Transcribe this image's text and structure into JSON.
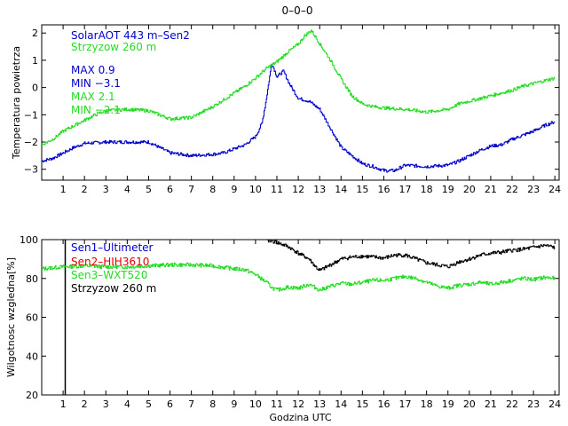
{
  "title": "0–0–0",
  "chart_data": [
    {
      "type": "line",
      "ylabel": "Temperatura powietrza",
      "xlim": [
        0,
        24.2
      ],
      "ylim": [
        -3.4,
        2.3
      ],
      "xticks": [
        1,
        2,
        3,
        4,
        5,
        6,
        7,
        8,
        9,
        10,
        11,
        12,
        13,
        14,
        15,
        16,
        17,
        18,
        19,
        20,
        21,
        22,
        23,
        24
      ],
      "xtick_labels": [
        "1",
        "2",
        "3",
        "4",
        "5",
        "6",
        "7",
        "8",
        "9",
        "10",
        "11",
        "12",
        "13",
        "14",
        "15",
        "16",
        "17",
        "18",
        "19",
        "20",
        "21",
        "22",
        "23",
        "24"
      ],
      "yticks": [
        -3,
        -2,
        -1,
        0,
        1,
        2
      ],
      "ytick_labels": [
        "−3",
        "−2",
        "−1",
        "0",
        "1",
        "2"
      ],
      "legend": [
        {
          "text": "SolarAOT 443 m–Sen2",
          "color": "#0000cc"
        },
        {
          "text": "Strzyzow 260 m",
          "color": "#22dd22"
        },
        {
          "text": "MAX 0.9",
          "color": "#0000cc"
        },
        {
          "text": "MIN −3.1",
          "color": "#0000cc"
        },
        {
          "text": "MAX 2.1",
          "color": "#22dd22"
        },
        {
          "text": "MIN −2.1",
          "color": "#22dd22"
        }
      ],
      "series": [
        {
          "name": "SolarAOT 443 m–Sen2",
          "color": "#0000cc",
          "points": [
            [
              0,
              -2.7
            ],
            [
              0.5,
              -2.6
            ],
            [
              1,
              -2.4
            ],
            [
              1.5,
              -2.2
            ],
            [
              2,
              -2.05
            ],
            [
              3,
              -2.0
            ],
            [
              4,
              -2.0
            ],
            [
              5,
              -2.0
            ],
            [
              5.5,
              -2.2
            ],
            [
              6,
              -2.4
            ],
            [
              7,
              -2.5
            ],
            [
              8,
              -2.45
            ],
            [
              8.5,
              -2.4
            ],
            [
              9,
              -2.25
            ],
            [
              9.5,
              -2.1
            ],
            [
              10,
              -1.8
            ],
            [
              10.3,
              -1.3
            ],
            [
              10.5,
              -0.4
            ],
            [
              10.75,
              0.9
            ],
            [
              11,
              0.4
            ],
            [
              11.3,
              0.6
            ],
            [
              11.6,
              0.1
            ],
            [
              12,
              -0.4
            ],
            [
              12.5,
              -0.5
            ],
            [
              13,
              -0.8
            ],
            [
              13.5,
              -1.5
            ],
            [
              14,
              -2.2
            ],
            [
              14.5,
              -2.5
            ],
            [
              15,
              -2.8
            ],
            [
              15.5,
              -2.9
            ],
            [
              16,
              -3.05
            ],
            [
              16.5,
              -3.05
            ],
            [
              17,
              -2.85
            ],
            [
              18,
              -2.9
            ],
            [
              19,
              -2.85
            ],
            [
              19.5,
              -2.7
            ],
            [
              20,
              -2.5
            ],
            [
              20.5,
              -2.3
            ],
            [
              21,
              -2.15
            ],
            [
              21.5,
              -2.1
            ],
            [
              22,
              -1.9
            ],
            [
              22.5,
              -1.75
            ],
            [
              23,
              -1.6
            ],
            [
              23.5,
              -1.4
            ],
            [
              24,
              -1.25
            ]
          ]
        },
        {
          "name": "Strzyzow 260 m",
          "color": "#22dd22",
          "points": [
            [
              0,
              -2.1
            ],
            [
              0.5,
              -1.9
            ],
            [
              1,
              -1.6
            ],
            [
              1.5,
              -1.4
            ],
            [
              2,
              -1.2
            ],
            [
              2.5,
              -1.0
            ],
            [
              3,
              -0.85
            ],
            [
              4,
              -0.8
            ],
            [
              5,
              -0.85
            ],
            [
              5.5,
              -1.0
            ],
            [
              6,
              -1.15
            ],
            [
              7,
              -1.1
            ],
            [
              7.5,
              -0.9
            ],
            [
              8,
              -0.7
            ],
            [
              8.5,
              -0.45
            ],
            [
              9,
              -0.2
            ],
            [
              9.5,
              0.05
            ],
            [
              10,
              0.35
            ],
            [
              10.5,
              0.7
            ],
            [
              11,
              0.95
            ],
            [
              11.5,
              1.3
            ],
            [
              12,
              1.6
            ],
            [
              12.3,
              1.9
            ],
            [
              12.6,
              2.1
            ],
            [
              13,
              1.6
            ],
            [
              13.5,
              1.0
            ],
            [
              14,
              0.3
            ],
            [
              14.5,
              -0.3
            ],
            [
              15,
              -0.6
            ],
            [
              15.5,
              -0.7
            ],
            [
              16,
              -0.75
            ],
            [
              17,
              -0.8
            ],
            [
              18,
              -0.9
            ],
            [
              18.5,
              -0.85
            ],
            [
              19,
              -0.8
            ],
            [
              19.5,
              -0.6
            ],
            [
              20,
              -0.5
            ],
            [
              20.5,
              -0.4
            ],
            [
              21,
              -0.3
            ],
            [
              21.5,
              -0.2
            ],
            [
              22,
              -0.1
            ],
            [
              22.5,
              0.05
            ],
            [
              23,
              0.15
            ],
            [
              23.5,
              0.25
            ],
            [
              24,
              0.35
            ]
          ]
        }
      ]
    },
    {
      "type": "line",
      "ylabel": "Wilgotnosc wzgledna[%]",
      "xlabel": "Godzina UTC",
      "xlim": [
        0,
        24.2
      ],
      "ylim": [
        20,
        100
      ],
      "xticks": [
        1,
        2,
        3,
        4,
        5,
        6,
        7,
        8,
        9,
        10,
        11,
        12,
        13,
        14,
        15,
        16,
        17,
        18,
        19,
        20,
        21,
        22,
        23,
        24
      ],
      "xtick_labels": [
        "1",
        "2",
        "3",
        "4",
        "5",
        "6",
        "7",
        "8",
        "9",
        "10",
        "11",
        "12",
        "13",
        "14",
        "15",
        "16",
        "17",
        "18",
        "19",
        "20",
        "21",
        "22",
        "23",
        "24"
      ],
      "yticks": [
        20,
        40,
        60,
        80,
        100
      ],
      "ytick_labels": [
        "20",
        "40",
        "60",
        "80",
        "100"
      ],
      "legend": [
        {
          "text": "Sen1–Ultimeter",
          "color": "#0000cc"
        },
        {
          "text": "Sen2–HIH3610",
          "color": "#dd0000"
        },
        {
          "text": "Sen3–WXT520",
          "color": "#22dd22"
        },
        {
          "text": "Strzyzow 260 m",
          "color": "#000000"
        }
      ],
      "vline": {
        "x": 1.1,
        "from": 20,
        "to": 100,
        "color": "#000000"
      },
      "series": [
        {
          "name": "Sen3–WXT520",
          "color": "#22dd22",
          "points": [
            [
              0,
              85
            ],
            [
              1,
              86
            ],
            [
              2,
              86.5
            ],
            [
              3,
              86
            ],
            [
              4,
              86
            ],
            [
              5,
              86.5
            ],
            [
              6,
              87
            ],
            [
              7,
              87
            ],
            [
              8,
              86.5
            ],
            [
              9,
              85
            ],
            [
              9.5,
              84.5
            ],
            [
              10,
              82
            ],
            [
              10.5,
              78
            ],
            [
              10.8,
              75
            ],
            [
              11,
              74
            ],
            [
              11.5,
              75.5
            ],
            [
              12,
              75
            ],
            [
              12.5,
              77
            ],
            [
              13,
              74
            ],
            [
              13.5,
              76
            ],
            [
              14,
              77.5
            ],
            [
              14.5,
              77
            ],
            [
              15,
              78
            ],
            [
              15.5,
              79
            ],
            [
              16,
              79
            ],
            [
              16.5,
              80
            ],
            [
              17,
              81
            ],
            [
              17.5,
              80
            ],
            [
              18,
              78
            ],
            [
              18.5,
              76
            ],
            [
              19,
              75
            ],
            [
              19.5,
              76.5
            ],
            [
              20,
              77
            ],
            [
              20.5,
              78
            ],
            [
              21,
              77
            ],
            [
              21.5,
              78
            ],
            [
              22,
              79
            ],
            [
              22.5,
              80
            ],
            [
              23,
              79.5
            ],
            [
              23.5,
              80.5
            ],
            [
              24,
              80
            ]
          ]
        },
        {
          "name": "Strzyzow 260 m",
          "color": "#000000",
          "points": [
            [
              10.5,
              100
            ],
            [
              11,
              98.5
            ],
            [
              11.5,
              96.5
            ],
            [
              12,
              93
            ],
            [
              12.5,
              90
            ],
            [
              12.8,
              86
            ],
            [
              13,
              84
            ],
            [
              13.5,
              87
            ],
            [
              14,
              90
            ],
            [
              14.5,
              91
            ],
            [
              15,
              91.5
            ],
            [
              15.5,
              91
            ],
            [
              16,
              90.5
            ],
            [
              16.5,
              92
            ],
            [
              17,
              92
            ],
            [
              17.5,
              90
            ],
            [
              18,
              88
            ],
            [
              18.5,
              87
            ],
            [
              19,
              86
            ],
            [
              19.5,
              88.5
            ],
            [
              20,
              90
            ],
            [
              20.5,
              92
            ],
            [
              21,
              93
            ],
            [
              21.5,
              93.5
            ],
            [
              22,
              94.5
            ],
            [
              22.5,
              95
            ],
            [
              23,
              96
            ],
            [
              23.5,
              97
            ],
            [
              24,
              96
            ]
          ]
        }
      ]
    }
  ]
}
